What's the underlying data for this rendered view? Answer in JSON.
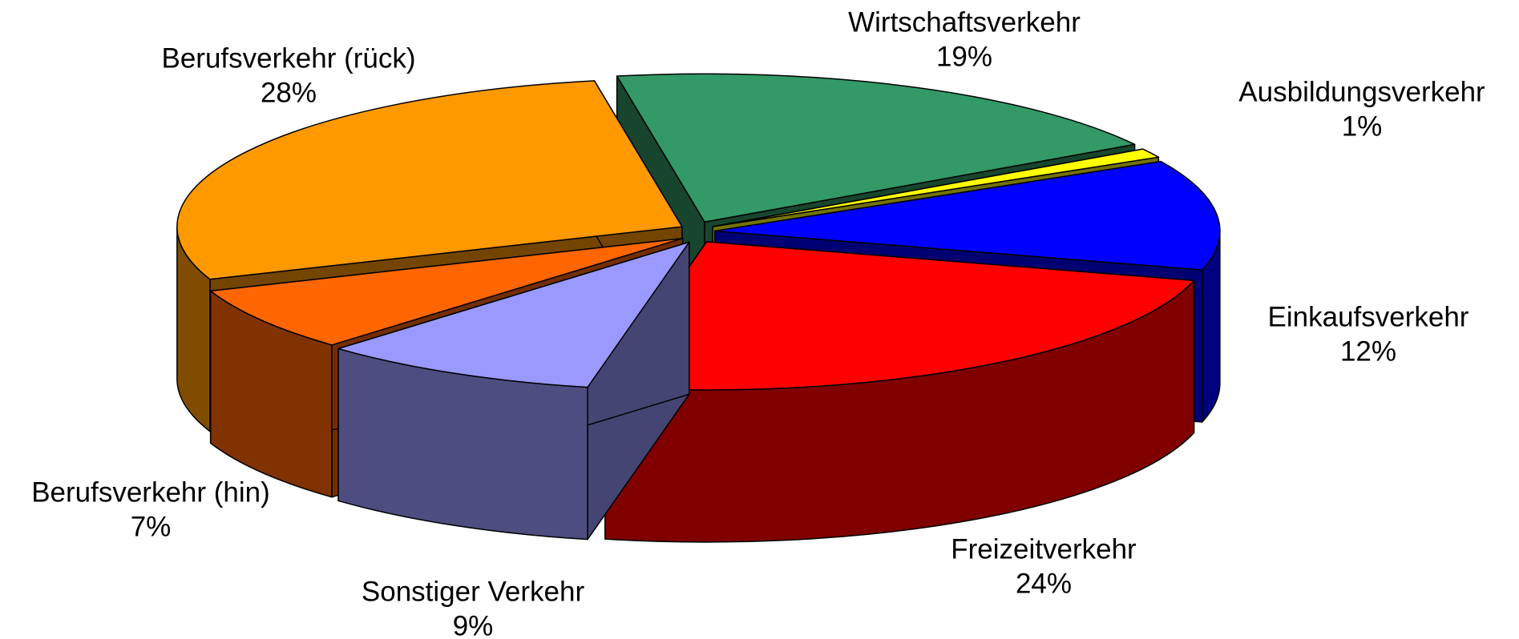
{
  "chart_data": {
    "type": "pie3d",
    "categories": [
      "Wirtschaftsverkehr",
      "Ausbildungsverkehr",
      "Einkaufsverkehr",
      "Freizeitverkehr",
      "Sonstiger Verkehr",
      "Berufsverkehr (hin)",
      "Berufsverkehr (rück)"
    ],
    "values": [
      19,
      1,
      12,
      24,
      9,
      7,
      28
    ],
    "value_labels": [
      "19%",
      "1%",
      "12%",
      "24%",
      "9%",
      "7%",
      "28%"
    ],
    "colors": [
      "#339966",
      "#ffff00",
      "#0000ff",
      "#ff0000",
      "#9999ff",
      "#ff6600",
      "#ff9900"
    ]
  }
}
